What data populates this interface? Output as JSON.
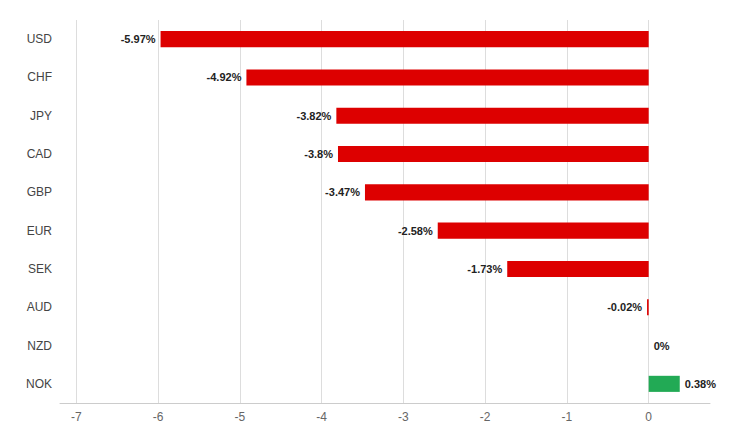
{
  "chart_data": {
    "type": "bar",
    "orientation": "horizontal",
    "categories": [
      "USD",
      "CHF",
      "JPY",
      "CAD",
      "GBP",
      "EUR",
      "SEK",
      "AUD",
      "NZD",
      "NOK"
    ],
    "values": [
      -5.97,
      -4.92,
      -3.82,
      -3.8,
      -3.47,
      -2.58,
      -1.73,
      -0.02,
      0.0,
      0.38
    ],
    "value_labels": [
      "-5.97%",
      "-4.92%",
      "-3.82%",
      "-3.8%",
      "-3.47%",
      "-2.58%",
      "-1.73%",
      "-0.02%",
      "0%",
      "0.38%"
    ],
    "colors": [
      "#dd0000",
      "#dd0000",
      "#dd0000",
      "#dd0000",
      "#dd0000",
      "#dd0000",
      "#dd0000",
      "#dd0000",
      null,
      "#22aa55"
    ],
    "xlim": [
      -7.2,
      0.75
    ],
    "xticks": [
      -7,
      -6,
      -5,
      -4,
      -3,
      -2,
      -1,
      0
    ],
    "grid": true,
    "data_labels": true
  }
}
